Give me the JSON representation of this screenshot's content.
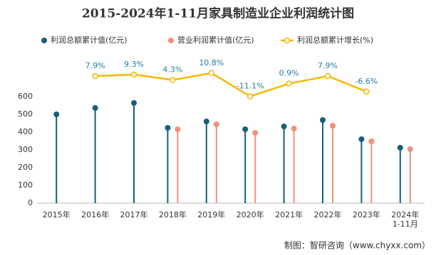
{
  "chart_data": {
    "type": "lollipop",
    "title": "2015-2024年1-11月家具制造业企业利润统计图",
    "source": "制图：智研咨询（www.chyxx.com）",
    "categories": [
      "2015年",
      "2016年",
      "2017年",
      "2018年",
      "2019年",
      "2020年",
      "2021年",
      "2022年",
      "2023年",
      "2024年\n1-11月"
    ],
    "series": [
      {
        "name": "利润总额累计值(亿元)",
        "color": "#175e7c",
        "values": [
          500,
          536,
          564,
          424,
          460,
          416,
          432,
          468,
          360,
          312
        ]
      },
      {
        "name": "营业利润累计值(亿元)",
        "color": "#ef917a",
        "values": [
          null,
          null,
          null,
          416,
          444,
          396,
          420,
          436,
          348,
          304
        ]
      },
      {
        "name": "利润总额累计增长(%)",
        "type": "line",
        "axis": "y2",
        "color": "#f5b800",
        "values": [
          null,
          7.9,
          9.3,
          4.3,
          10.8,
          -11.1,
          0.9,
          7.9,
          -6.6,
          null
        ],
        "value_labels": [
          null,
          "7.9%",
          "9.3%",
          "4.3%",
          "10.8%",
          "-11.1%",
          "0.9%",
          "7.9%",
          "-6.6%",
          null
        ]
      }
    ],
    "ylim": [
      0,
      600
    ],
    "yticks": [
      0,
      100,
      200,
      300,
      400,
      500,
      600
    ],
    "y2lim": [
      -20,
      20
    ],
    "legend": "top",
    "grid": false
  }
}
